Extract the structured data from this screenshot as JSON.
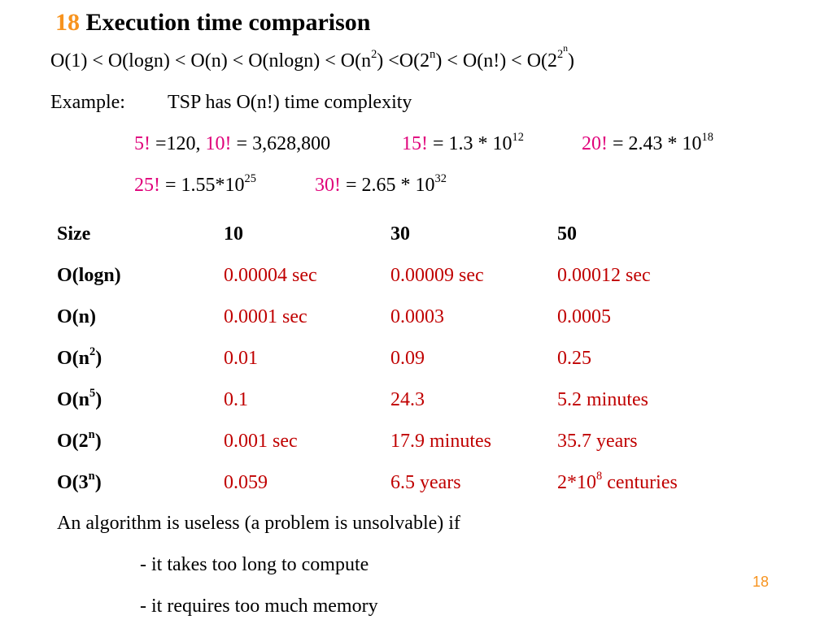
{
  "slide": {
    "number": "18",
    "title": "Execution time comparison",
    "page_number": "18"
  },
  "order": {
    "p1": "O(1) < O(logn)  <  O(n)  < O(nlogn) < O(n",
    "p2": "2",
    "p3": ") <O(2",
    "p4": "n",
    "p5": ") < O(n!) < O(2",
    "p6": "2",
    "p7": "n",
    "p8": ")"
  },
  "example": {
    "label": "Example:",
    "text": "TSP has O(n!) time complexity"
  },
  "factorials": {
    "f5_label": "5!",
    "f5_value": " =120, ",
    "f10_label": "10!",
    "f10_value": " = 3,628,800",
    "f15_label": "15!",
    "f15_value": " = 1.3 * 10",
    "f15_exp": "12",
    "f20_label": "20!",
    "f20_value": " = 2.43 * 10",
    "f20_exp": "18",
    "f25_label": "25!",
    "f25_value": " = 1.55*10",
    "f25_exp": "25",
    "f30_label": "30!",
    "f30_value": " = 2.65 * 10",
    "f30_exp": "32"
  },
  "table": {
    "headers": [
      "Size",
      "10",
      "30",
      "50"
    ],
    "rows": [
      {
        "label": "O(logn)",
        "label_sup": "",
        "label_end": "",
        "values": [
          "0.00004 sec",
          "0.00009 sec",
          "0.00012 sec"
        ]
      },
      {
        "label": "O(n)",
        "label_sup": "",
        "label_end": "",
        "values": [
          "0.0001 sec",
          "0.0003",
          "0.0005"
        ]
      },
      {
        "label": "O(n",
        "label_sup": "2",
        "label_end": ")",
        "values": [
          "0.01",
          "0.09",
          "0.25"
        ]
      },
      {
        "label": "O(n",
        "label_sup": "5",
        "label_end": ")",
        "values": [
          "0.1",
          "24.3",
          "5.2 minutes"
        ]
      },
      {
        "label": "O(2",
        "label_sup": "n",
        "label_end": ")",
        "values": [
          "0.001 sec",
          "17.9 minutes",
          "35.7 years"
        ]
      },
      {
        "label": "O(3",
        "label_sup": "n",
        "label_end": ")",
        "values": [
          "0.059",
          "6.5 years",
          "2*10"
        ]
      }
    ],
    "last_cell_sup": "8",
    "last_cell_end": " centuries"
  },
  "conclusion": {
    "line1": "An algorithm is useless (a problem is unsolvable) if",
    "line2": "- it takes too long to compute",
    "line3": "- it requires too much memory"
  },
  "colors": {
    "title_number": "#f7931e",
    "factorial_label": "#e0007a",
    "table_value": "#c00000",
    "page_number": "#f7931e"
  }
}
